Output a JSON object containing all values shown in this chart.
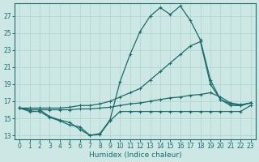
{
  "xlabel": "Humidex (Indice chaleur)",
  "bg_color": "#cde8e4",
  "grid_color": "#b0d8d4",
  "line_color": "#1a6b6b",
  "xlim": [
    -0.5,
    23.5
  ],
  "ylim": [
    12.5,
    28.5
  ],
  "xticks": [
    0,
    1,
    2,
    3,
    4,
    5,
    6,
    7,
    8,
    9,
    10,
    11,
    12,
    13,
    14,
    15,
    16,
    17,
    18,
    19,
    20,
    21,
    22,
    23
  ],
  "yticks": [
    13,
    15,
    17,
    19,
    21,
    23,
    25,
    27
  ],
  "line1_x": [
    0,
    1,
    2,
    3,
    4,
    5,
    6,
    7,
    8,
    9,
    10,
    11,
    12,
    13,
    14,
    15,
    16,
    17,
    18,
    19,
    20,
    21,
    22,
    23
  ],
  "line1_y": [
    16.2,
    16.0,
    16.0,
    15.2,
    14.8,
    14.5,
    13.7,
    13.0,
    13.2,
    14.8,
    19.3,
    22.5,
    25.2,
    27.0,
    28.0,
    27.2,
    28.2,
    26.5,
    24.2,
    19.5,
    17.2,
    16.5,
    16.5,
    16.8
  ],
  "line2_x": [
    0,
    1,
    2,
    3,
    4,
    5,
    6,
    7,
    8,
    9,
    10,
    11,
    12,
    13,
    14,
    15,
    16,
    17,
    18,
    19,
    20,
    21,
    22,
    23
  ],
  "line2_y": [
    16.2,
    16.2,
    16.2,
    16.2,
    16.2,
    16.3,
    16.5,
    16.5,
    16.7,
    17.0,
    17.5,
    18.0,
    18.5,
    19.5,
    20.5,
    21.5,
    22.5,
    23.5,
    24.0,
    19.0,
    17.2,
    16.7,
    16.5,
    16.8
  ],
  "line3_x": [
    0,
    1,
    2,
    3,
    4,
    5,
    6,
    7,
    8,
    9,
    10,
    11,
    12,
    13,
    14,
    15,
    16,
    17,
    18,
    19,
    20,
    21,
    22,
    23
  ],
  "line3_y": [
    16.2,
    16.0,
    16.0,
    16.0,
    16.0,
    16.0,
    16.1,
    16.1,
    16.2,
    16.3,
    16.5,
    16.7,
    16.8,
    17.0,
    17.2,
    17.4,
    17.5,
    17.7,
    17.8,
    18.0,
    17.5,
    16.8,
    16.6,
    16.8
  ],
  "line4_x": [
    0,
    1,
    2,
    3,
    4,
    5,
    6,
    7,
    8,
    9,
    10,
    11,
    12,
    13,
    14,
    15,
    16,
    17,
    18,
    19,
    20,
    21,
    22,
    23
  ],
  "line4_y": [
    16.2,
    15.8,
    15.8,
    15.1,
    14.7,
    14.2,
    14.0,
    13.0,
    13.1,
    14.7,
    15.8,
    15.8,
    15.8,
    15.8,
    15.8,
    15.8,
    15.8,
    15.8,
    15.8,
    15.8,
    15.8,
    15.8,
    15.8,
    16.5
  ]
}
